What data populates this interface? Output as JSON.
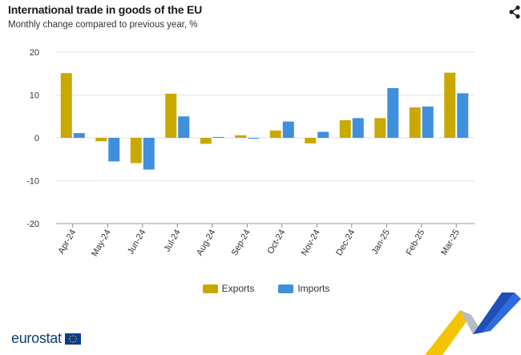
{
  "header": {
    "title": "International trade in goods of the EU",
    "subtitle": "Monthly change compared to previous year, %",
    "share_icon": "share-icon"
  },
  "colors": {
    "exports": "#c9a800",
    "imports": "#3f8fdc",
    "grid": "#e2e2e2",
    "brand": "#0e3e75"
  },
  "chart_data": {
    "type": "bar",
    "title": "International trade in goods of the EU",
    "subtitle": "Monthly change compared to previous year, %",
    "xlabel": "",
    "ylabel": "",
    "ylim": [
      -20,
      20
    ],
    "yticks": [
      20,
      10,
      0,
      -10,
      -20
    ],
    "grid": true,
    "legend_position": "bottom",
    "categories": [
      "Apr-24",
      "May-24",
      "Jun-24",
      "Jul-24",
      "Aug-24",
      "Sep-24",
      "Oct-24",
      "Nov-24",
      "Dec-24",
      "Jan-25",
      "Feb-25",
      "Mar-25"
    ],
    "series": [
      {
        "name": "Exports",
        "color": "#c9a800",
        "values": [
          15.1,
          -0.8,
          -5.9,
          10.3,
          -1.4,
          0.6,
          1.7,
          -1.3,
          4.1,
          4.6,
          7.1,
          15.2
        ]
      },
      {
        "name": "Imports",
        "color": "#3f8fdc",
        "values": [
          1.1,
          -5.5,
          -7.4,
          5.0,
          0.2,
          -0.2,
          3.8,
          1.4,
          4.6,
          11.6,
          7.3,
          10.4
        ]
      }
    ]
  },
  "legend": {
    "items": [
      {
        "label": "Exports",
        "color": "#c9a800"
      },
      {
        "label": "Imports",
        "color": "#3f8fdc"
      }
    ]
  },
  "footer": {
    "logo_text": "eurostat"
  }
}
